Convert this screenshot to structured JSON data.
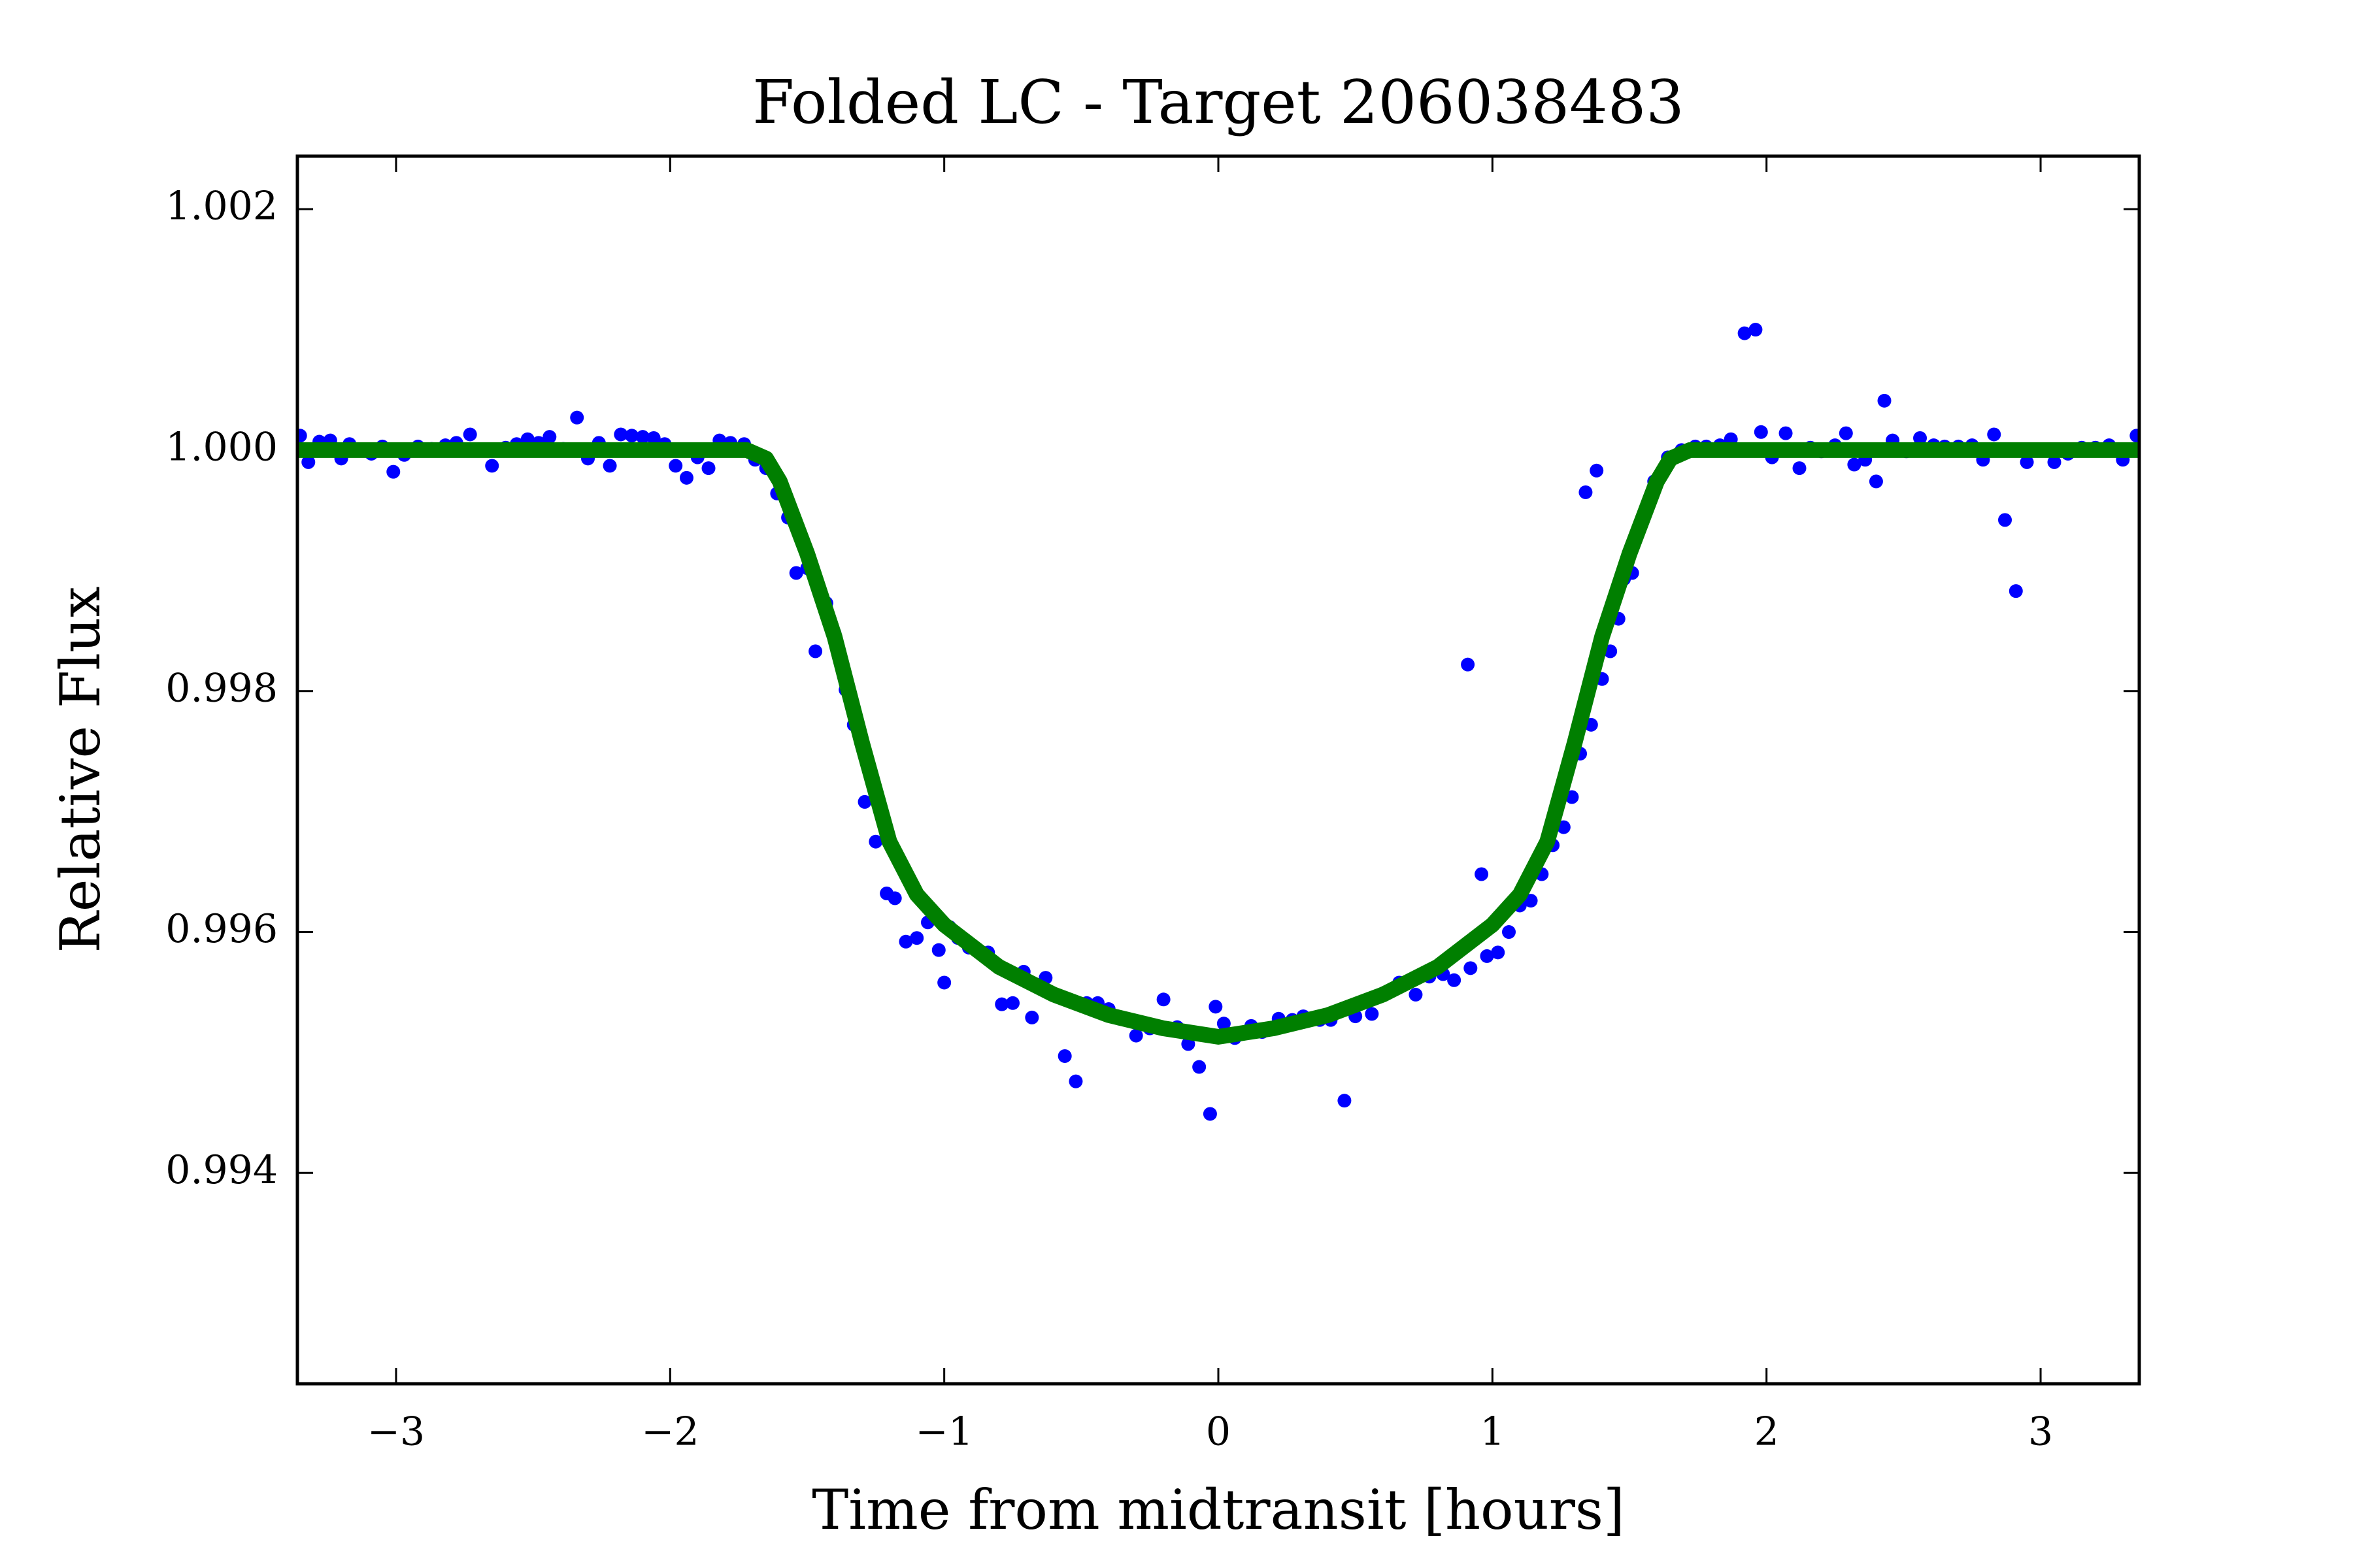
{
  "chart_data": {
    "type": "scatter",
    "title": "Folded LC - Target 206038483",
    "xlabel": "Time from midtransit [hours]",
    "ylabel": "Relative Flux",
    "xlim": [
      -3.36,
      3.36
    ],
    "ylim": [
      0.99225,
      1.00244
    ],
    "xticks": [
      {
        "value": -3,
        "label": "−3"
      },
      {
        "value": -2,
        "label": "−2"
      },
      {
        "value": -1,
        "label": "−1"
      },
      0,
      1,
      2,
      3
    ],
    "yticks": [
      0.994,
      0.996,
      0.998,
      {
        "value": 1,
        "label": "1.000"
      },
      1.002
    ],
    "grid": false,
    "series": [
      {
        "type": "scatter",
        "color": "#0000ff",
        "x": [
          -3.35,
          -3.32,
          -3.28,
          -3.24,
          -3.2,
          -3.17,
          -3.13,
          -3.09,
          -3.05,
          -3.01,
          -2.97,
          -2.92,
          -2.87,
          -2.82,
          -2.78,
          -2.73,
          -2.69,
          -2.65,
          -2.6,
          -2.56,
          -2.52,
          -2.48,
          -2.44,
          -2.39,
          -2.34,
          -2.3,
          -2.26,
          -2.22,
          -2.18,
          -2.14,
          -2.1,
          -2.06,
          -2.02,
          -1.98,
          -1.94,
          -1.9,
          -1.86,
          -1.82,
          -1.78,
          -1.73,
          -1.69,
          -1.65,
          -1.61,
          -1.57,
          -1.54,
          -1.5,
          -1.47,
          -1.43,
          -1.4,
          -1.36,
          -1.33,
          -1.29,
          -1.25,
          -1.21,
          -1.18,
          -1.14,
          -1.1,
          -1.06,
          -1.02,
          -1.0,
          -0.98,
          -0.95,
          -0.91,
          -0.84,
          -0.79,
          -0.75,
          -0.71,
          -0.68,
          -0.63,
          -0.56,
          -0.52,
          -0.48,
          -0.44,
          -0.4,
          -0.36,
          -0.3,
          -0.25,
          -0.2,
          -0.15,
          -0.11,
          -0.07,
          -0.03,
          -0.01,
          0.02,
          0.06,
          0.12,
          0.16,
          0.22,
          0.27,
          0.31,
          0.37,
          0.41,
          0.46,
          0.5,
          0.56,
          0.6,
          0.66,
          0.72,
          0.77,
          0.82,
          0.86,
          0.91,
          0.92,
          0.96,
          0.98,
          1.02,
          1.06,
          1.1,
          1.14,
          1.18,
          1.22,
          1.26,
          1.29,
          1.34,
          1.32,
          1.36,
          1.38,
          1.4,
          1.43,
          1.46,
          1.48,
          1.51,
          1.55,
          1.59,
          1.64,
          1.69,
          1.74,
          1.78,
          1.83,
          1.87,
          1.92,
          1.96,
          1.98,
          2.02,
          2.07,
          2.12,
          2.16,
          2.2,
          2.25,
          2.29,
          2.32,
          2.36,
          2.4,
          2.43,
          2.46,
          2.51,
          2.56,
          2.61,
          2.65,
          2.7,
          2.75,
          2.79,
          2.83,
          2.87,
          2.91,
          2.95,
          3.0,
          3.05,
          3.1,
          3.15,
          3.2,
          3.25,
          3.3,
          3.35
        ],
        "y": [
          1.00012,
          0.9999,
          1.00007,
          1.00008,
          0.99993,
          1.00005,
          1.0,
          0.99997,
          1.00003,
          0.99982,
          0.99996,
          1.00003,
          1.00001,
          1.00004,
          1.00006,
          1.00013,
          1.0,
          0.99987,
          1.00002,
          1.00005,
          1.00009,
          1.00006,
          1.00011,
          1.00001,
          1.00027,
          0.99993,
          1.00006,
          0.99987,
          1.00013,
          1.00012,
          1.00011,
          1.0001,
          1.00005,
          0.99987,
          0.99977,
          0.99994,
          0.99985,
          1.00008,
          1.00006,
          1.00005,
          0.99992,
          0.99985,
          0.99964,
          0.99944,
          0.99898,
          0.99902,
          0.99833,
          0.99873,
          0.99848,
          0.99801,
          0.99772,
          0.99708,
          0.99675,
          0.99632,
          0.99628,
          0.99592,
          0.99595,
          0.99608,
          0.99585,
          0.99558,
          0.99604,
          0.99595,
          0.99587,
          0.99583,
          0.9954,
          0.99541,
          0.99567,
          0.99529,
          0.99562,
          0.99497,
          0.99476,
          0.99541,
          0.99541,
          0.99536,
          0.99528,
          0.99514,
          0.9952,
          0.99544,
          0.99521,
          0.99507,
          0.99488,
          0.99449,
          0.99538,
          0.99524,
          0.99512,
          0.99522,
          0.99517,
          0.99528,
          0.99527,
          0.9953,
          0.99527,
          0.99527,
          0.9946,
          0.9953,
          0.99532,
          0.99549,
          0.99558,
          0.99548,
          0.99563,
          0.99565,
          0.9956,
          0.99822,
          0.9957,
          0.99648,
          0.9958,
          0.99583,
          0.996,
          0.99622,
          0.99626,
          0.99648,
          0.99672,
          0.99687,
          0.99712,
          0.99965,
          0.99748,
          0.99772,
          0.99983,
          0.9981,
          0.99833,
          0.9986,
          0.99893,
          0.99898,
          0.99945,
          0.99974,
          0.99994,
          1.0,
          1.00003,
          1.00003,
          1.00004,
          1.00009,
          1.00097,
          1.001,
          1.00015,
          0.99994,
          1.00014,
          0.99985,
          1.00002,
          0.99999,
          1.00004,
          1.00014,
          0.99988,
          0.99992,
          0.99974,
          1.00041,
          1.00008,
          0.99999,
          1.0001,
          1.00004,
          1.00003,
          1.00003,
          1.00004,
          0.99992,
          1.00013,
          0.99942,
          0.99883,
          0.9999,
          1.0,
          0.9999,
          0.99997,
          1.00002,
          1.00002,
          1.00004,
          0.99992,
          1.00012
        ]
      },
      {
        "type": "line",
        "color": "#007f00",
        "x": [
          -3.36,
          -1.72,
          -1.65,
          -1.6,
          -1.5,
          -1.4,
          -1.3,
          -1.2,
          -1.1,
          -1.0,
          -0.8,
          -0.6,
          -0.4,
          -0.2,
          0,
          0.2,
          0.4,
          0.6,
          0.8,
          1.0,
          1.1,
          1.2,
          1.3,
          1.4,
          1.5,
          1.6,
          1.65,
          1.72,
          3.36
        ],
        "y": [
          1.0,
          1.0,
          0.99993,
          0.99974,
          0.99914,
          0.99845,
          0.99757,
          0.99675,
          0.99631,
          0.99606,
          0.99571,
          0.99548,
          0.99531,
          0.9952,
          0.99513,
          0.9952,
          0.99531,
          0.99548,
          0.99571,
          0.99606,
          0.99631,
          0.99675,
          0.99757,
          0.99845,
          0.99914,
          0.99974,
          0.99993,
          1.0,
          1.0
        ]
      }
    ]
  }
}
